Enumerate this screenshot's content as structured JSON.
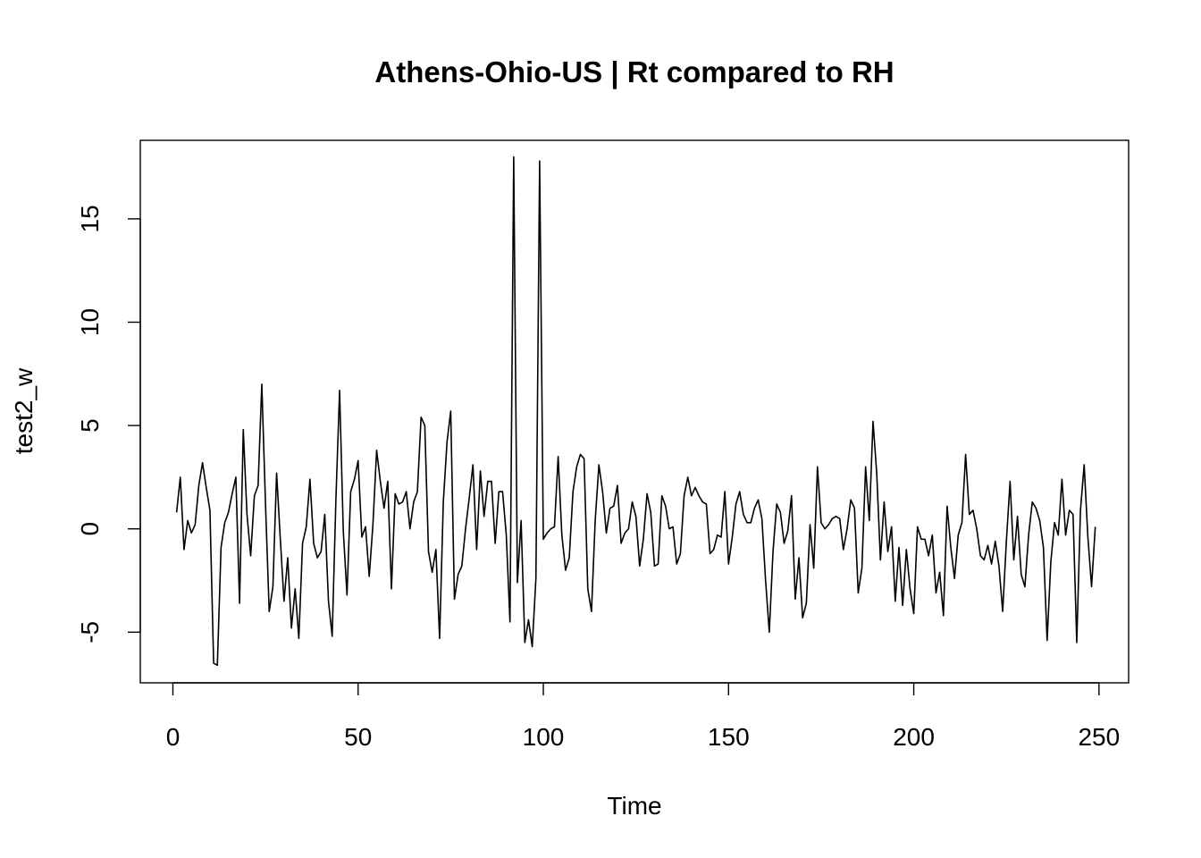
{
  "chart_data": {
    "type": "line",
    "title": "Athens-Ohio-US | Rt compared to RH",
    "xlabel": "Time",
    "ylabel": "test2_w",
    "xlim": [
      -8.8,
      258
    ],
    "ylim": [
      -7.45,
      18.8
    ],
    "x_ticks": [
      0,
      50,
      100,
      150,
      200,
      250
    ],
    "y_ticks": [
      -5,
      0,
      5,
      10,
      15
    ],
    "grid": false,
    "legend": "none",
    "line_color": "#000000",
    "x_start": 1,
    "series": [
      {
        "values": [
          0.8,
          2.5,
          -1.0,
          0.4,
          -0.2,
          0.2,
          2.1,
          3.2,
          2.0,
          0.9,
          -6.5,
          -6.6,
          -0.9,
          0.3,
          0.8,
          1.7,
          2.5,
          -3.6,
          4.8,
          0.7,
          -1.3,
          1.6,
          2.1,
          7.0,
          1.2,
          -4.0,
          -2.8,
          2.7,
          -0.5,
          -3.5,
          -1.4,
          -4.8,
          -2.9,
          -5.3,
          -0.7,
          0.1,
          2.4,
          -0.7,
          -1.4,
          -1.1,
          0.7,
          -3.5,
          -5.2,
          1.4,
          6.7,
          -0.1,
          -3.2,
          1.8,
          2.4,
          3.3,
          -0.4,
          0.1,
          -2.3,
          0.2,
          3.8,
          2.3,
          1.0,
          2.3,
          -2.9,
          1.7,
          1.2,
          1.3,
          1.8,
          0.0,
          1.3,
          1.8,
          5.4,
          5.0,
          -1.1,
          -2.1,
          -1.0,
          -5.3,
          1.3,
          4.2,
          5.7,
          -3.4,
          -2.2,
          -1.8,
          0.0,
          1.5,
          3.1,
          -1.0,
          2.8,
          0.6,
          2.3,
          2.3,
          -0.7,
          1.8,
          1.8,
          -0.3,
          -4.5,
          18.0,
          -2.6,
          0.4,
          -5.5,
          -4.4,
          -5.7,
          -2.4,
          17.8,
          -0.5,
          -0.2,
          0.0,
          0.1,
          3.5,
          -0.3,
          -2.0,
          -1.4,
          1.8,
          3.0,
          3.6,
          3.4,
          -2.9,
          -4.0,
          0.4,
          3.1,
          1.8,
          -0.2,
          1.0,
          1.1,
          2.1,
          -0.7,
          -0.2,
          0.0,
          1.3,
          0.6,
          -1.8,
          -0.5,
          1.7,
          0.8,
          -1.8,
          -1.7,
          1.6,
          1.1,
          0.0,
          0.1,
          -1.7,
          -1.2,
          1.6,
          2.5,
          1.6,
          2.0,
          1.6,
          1.3,
          1.2,
          -1.2,
          -1.0,
          -0.3,
          -0.4,
          1.8,
          -1.7,
          -0.4,
          1.2,
          1.8,
          0.7,
          0.3,
          0.3,
          1.0,
          1.4,
          0.5,
          -2.5,
          -5.0,
          -1.1,
          1.2,
          0.8,
          -0.7,
          -0.1,
          1.6,
          -3.4,
          -1.4,
          -4.3,
          -3.6,
          0.2,
          -1.9,
          3.0,
          0.3,
          0.0,
          0.2,
          0.5,
          0.6,
          0.5,
          -1.0,
          0.0,
          1.4,
          1.0,
          -3.1,
          -1.9,
          3.0,
          0.4,
          5.2,
          2.7,
          -1.5,
          1.3,
          -1.1,
          0.1,
          -3.5,
          -0.9,
          -3.7,
          -1.0,
          -2.9,
          -4.1,
          0.1,
          -0.5,
          -0.5,
          -1.3,
          -0.3,
          -3.1,
          -2.1,
          -4.2,
          1.1,
          -0.9,
          -2.4,
          -0.3,
          0.3,
          3.6,
          0.7,
          0.9,
          0.0,
          -1.3,
          -1.5,
          -0.8,
          -1.7,
          -0.6,
          -1.8,
          -4.0,
          -0.6,
          2.3,
          -1.5,
          0.6,
          -2.2,
          -2.8,
          -0.3,
          1.3,
          1.0,
          0.4,
          -0.9,
          -5.4,
          -1.6,
          0.3,
          -0.3,
          2.4,
          -0.3,
          0.9,
          0.7,
          -5.5,
          0.9,
          3.1,
          -0.4,
          -2.8,
          0.1
        ]
      }
    ]
  }
}
